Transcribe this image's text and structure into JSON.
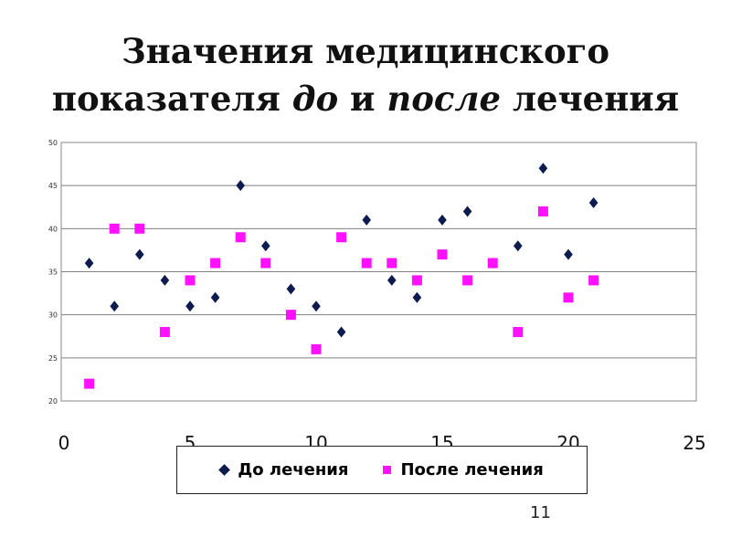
{
  "title": {
    "part1": "Значения медицинского",
    "part2": "показателя ",
    "part3": "до",
    "part4": " и ",
    "part5": "после",
    "part6": " лечения"
  },
  "page_number": "11",
  "chart_data": {
    "type": "scatter",
    "xlim": [
      0,
      25
    ],
    "ylim": [
      20,
      50
    ],
    "x_ticks": [
      0,
      5,
      10,
      15,
      20,
      25
    ],
    "y_ticks": [
      20,
      25,
      30,
      35,
      40,
      45,
      50
    ],
    "grid": "horizontal",
    "legend_position": "bottom",
    "series": [
      {
        "name": "До лечения",
        "marker": "diamond",
        "color": "#0d1b4f",
        "points": [
          [
            1,
            36
          ],
          [
            2,
            31
          ],
          [
            3,
            37
          ],
          [
            4,
            34
          ],
          [
            5,
            31
          ],
          [
            6,
            32
          ],
          [
            7,
            45
          ],
          [
            8,
            38
          ],
          [
            9,
            33
          ],
          [
            10,
            31
          ],
          [
            11,
            28
          ],
          [
            12,
            41
          ],
          [
            13,
            34
          ],
          [
            14,
            32
          ],
          [
            15,
            41
          ],
          [
            16,
            42
          ],
          [
            17,
            36
          ],
          [
            18,
            38
          ],
          [
            19,
            47
          ],
          [
            20,
            37
          ],
          [
            21,
            43
          ]
        ]
      },
      {
        "name": "После лечения",
        "marker": "square",
        "color": "#ff10ff",
        "points": [
          [
            1,
            22
          ],
          [
            2,
            40
          ],
          [
            3,
            40
          ],
          [
            4,
            28
          ],
          [
            5,
            34
          ],
          [
            6,
            36
          ],
          [
            7,
            39
          ],
          [
            8,
            36
          ],
          [
            9,
            30
          ],
          [
            10,
            26
          ],
          [
            11,
            39
          ],
          [
            12,
            36
          ],
          [
            13,
            36
          ],
          [
            14,
            34
          ],
          [
            15,
            37
          ],
          [
            16,
            34
          ],
          [
            17,
            36
          ],
          [
            18,
            28
          ],
          [
            19,
            42
          ],
          [
            20,
            32
          ],
          [
            21,
            34
          ]
        ]
      }
    ]
  }
}
